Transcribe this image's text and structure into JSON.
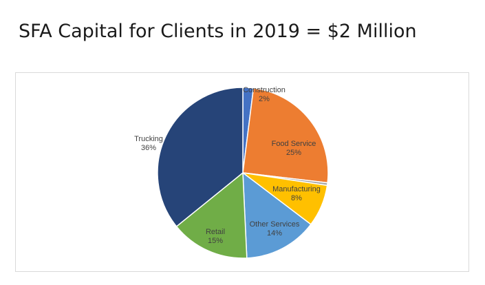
{
  "slide": {
    "title": "SFA Capital for Clients in 2019 = $2 Million"
  },
  "chart_data": {
    "type": "pie",
    "title": "",
    "slices": [
      {
        "label": "Construction",
        "value": 2,
        "display": "2%",
        "color": "#4472c4"
      },
      {
        "label": "Food Service",
        "value": 25,
        "display": "25%",
        "color": "#ed7d31"
      },
      {
        "label": "",
        "value": 0.5,
        "display": "",
        "color": "#a5a5a5"
      },
      {
        "label": "Manufacturing",
        "value": 8,
        "display": "8%",
        "color": "#ffc000"
      },
      {
        "label": "Other Services",
        "value": 14,
        "display": "14%",
        "color": "#5b9bd5"
      },
      {
        "label": "Retail",
        "value": 15,
        "display": "15%",
        "color": "#70ad47"
      },
      {
        "label": "Trucking",
        "value": 36,
        "display": "36%",
        "color": "#264478"
      }
    ],
    "legend": "none",
    "label_position": "inside"
  }
}
